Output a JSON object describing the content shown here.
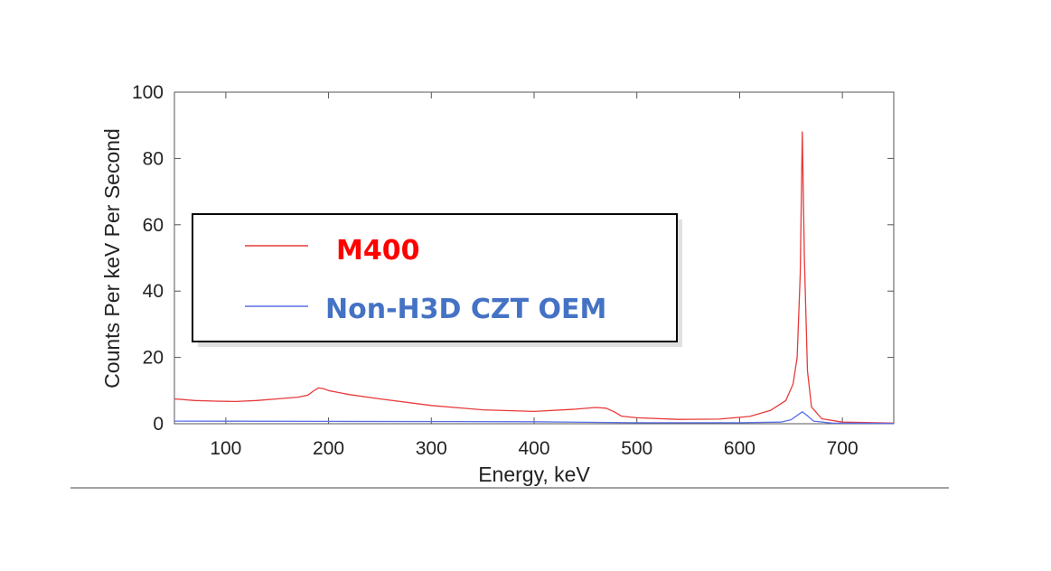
{
  "chart_data": {
    "type": "line",
    "title": "",
    "xlabel": "Energy, keV",
    "ylabel": "Counts Per keV Per Second",
    "xlim": [
      50,
      750
    ],
    "ylim": [
      0,
      100
    ],
    "x_ticks": [
      100,
      200,
      300,
      400,
      500,
      600,
      700
    ],
    "y_ticks": [
      0,
      20,
      40,
      60,
      80,
      100
    ],
    "grid": false,
    "legend": {
      "placement": "center-left",
      "entries": [
        {
          "label": "M400",
          "color": "#ff0000"
        },
        {
          "label": "Non-H3D CZT OEM",
          "color": "#4472c4"
        }
      ]
    },
    "series": [
      {
        "name": "M400",
        "color": "#e83a3a",
        "points": [
          [
            50,
            7.5
          ],
          [
            70,
            7.0
          ],
          [
            90,
            6.8
          ],
          [
            110,
            6.7
          ],
          [
            130,
            7.0
          ],
          [
            150,
            7.5
          ],
          [
            170,
            8.0
          ],
          [
            180,
            8.6
          ],
          [
            185,
            9.8
          ],
          [
            190,
            10.8
          ],
          [
            195,
            10.6
          ],
          [
            200,
            10.0
          ],
          [
            220,
            8.8
          ],
          [
            250,
            7.5
          ],
          [
            300,
            5.5
          ],
          [
            350,
            4.2
          ],
          [
            400,
            3.7
          ],
          [
            440,
            4.4
          ],
          [
            460,
            4.9
          ],
          [
            470,
            4.7
          ],
          [
            478,
            3.6
          ],
          [
            485,
            2.3
          ],
          [
            500,
            1.8
          ],
          [
            540,
            1.3
          ],
          [
            580,
            1.4
          ],
          [
            610,
            2.2
          ],
          [
            630,
            4.0
          ],
          [
            645,
            7.0
          ],
          [
            652,
            12.0
          ],
          [
            656,
            20.0
          ],
          [
            659,
            45.0
          ],
          [
            661,
            88.0
          ],
          [
            663,
            50.0
          ],
          [
            666,
            16.0
          ],
          [
            670,
            5.0
          ],
          [
            680,
            1.5
          ],
          [
            700,
            0.5
          ],
          [
            750,
            0.2
          ]
        ]
      },
      {
        "name": "Non-H3D CZT OEM",
        "color": "#5b6ee8",
        "points": [
          [
            50,
            0.8
          ],
          [
            200,
            0.7
          ],
          [
            400,
            0.6
          ],
          [
            500,
            0.3
          ],
          [
            600,
            0.3
          ],
          [
            640,
            0.5
          ],
          [
            650,
            1.2
          ],
          [
            656,
            2.5
          ],
          [
            661,
            3.6
          ],
          [
            666,
            2.4
          ],
          [
            672,
            0.8
          ],
          [
            690,
            0.2
          ],
          [
            750,
            0.1
          ]
        ]
      }
    ]
  }
}
